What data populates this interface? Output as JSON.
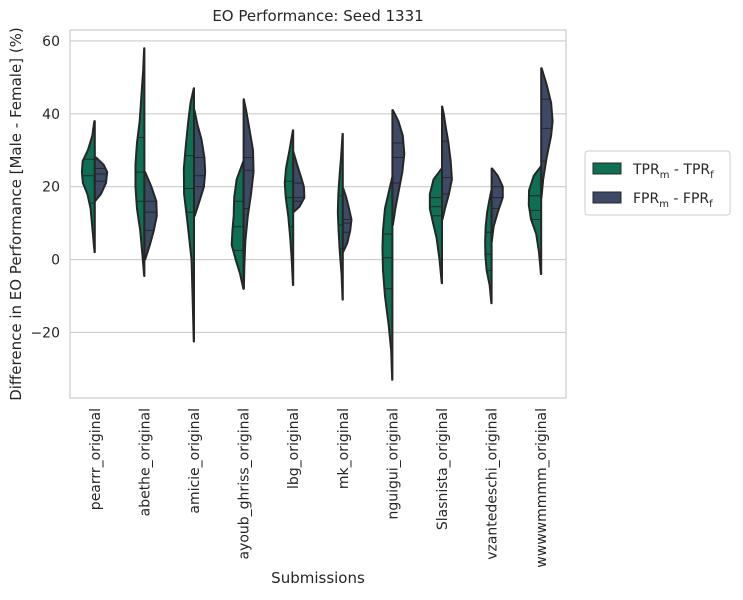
{
  "chart_data": {
    "type": "violin",
    "title": "EO Performance: Seed 1331",
    "xlabel": "Submissions",
    "ylabel": "Difference in EO Performance [Male - Female] (%)",
    "ylim": [
      -38,
      63
    ],
    "yticks": [
      -20,
      0,
      20,
      40,
      60
    ],
    "grid": "y",
    "legend_position": "right",
    "categories": [
      "pearrr_original",
      "abethe_original",
      "amicie_original",
      "ayoub_ghriss_original",
      "lbg_original",
      "mk_original",
      "nguigui_original",
      "Slasnista_original",
      "vzantedeschi_original",
      "wwwwmmmm_original"
    ],
    "series": [
      {
        "name": "TPR_m - TPR_f",
        "legend_main": "TPR",
        "legend_sub1": "m",
        "legend_mid": " - TPR",
        "legend_sub2": "f",
        "color": "#0d7054",
        "violins": [
          {
            "min": 2,
            "max": 38,
            "quartiles": [
              15.5,
              23,
              27.5
            ],
            "shape": [
              [
                2,
                0.01
              ],
              [
                8,
                0.09
              ],
              [
                14,
                0.17
              ],
              [
                18,
                0.3
              ],
              [
                21,
                0.48
              ],
              [
                24,
                0.52
              ],
              [
                27,
                0.49
              ],
              [
                30,
                0.28
              ],
              [
                34,
                0.1
              ],
              [
                38,
                0.02
              ]
            ]
          },
          {
            "min": -4.5,
            "max": 58,
            "quartiles": [
              16,
              24,
              33.5
            ],
            "shape": [
              [
                -4.5,
                0.01
              ],
              [
                2,
                0.09
              ],
              [
                8,
                0.17
              ],
              [
                14,
                0.3
              ],
              [
                20,
                0.36
              ],
              [
                26,
                0.36
              ],
              [
                32,
                0.3
              ],
              [
                38,
                0.19
              ],
              [
                45,
                0.12
              ],
              [
                52,
                0.05
              ],
              [
                58,
                0.01
              ]
            ]
          },
          {
            "min": -22.5,
            "max": 47,
            "quartiles": [
              13,
              19.5,
              28.5
            ],
            "shape": [
              [
                -22.5,
                0.01
              ],
              [
                -12,
                0.05
              ],
              [
                0,
                0.1
              ],
              [
                10,
                0.26
              ],
              [
                18,
                0.4
              ],
              [
                25,
                0.41
              ],
              [
                32,
                0.32
              ],
              [
                38,
                0.23
              ],
              [
                43,
                0.14
              ],
              [
                47,
                0.01
              ]
            ]
          },
          {
            "min": -8,
            "max": 27,
            "quartiles": [
              2.5,
              9,
              16
            ],
            "shape": [
              [
                -8,
                0.01
              ],
              [
                -4,
                0.14
              ],
              [
                0,
                0.32
              ],
              [
                4,
                0.48
              ],
              [
                8,
                0.45
              ],
              [
                12,
                0.4
              ],
              [
                17,
                0.38
              ],
              [
                22,
                0.28
              ],
              [
                27,
                0.01
              ]
            ]
          },
          {
            "min": -7,
            "max": 35.5,
            "quartiles": [
              9,
              17,
              21.5
            ],
            "shape": [
              [
                -7,
                0.01
              ],
              [
                0,
                0.06
              ],
              [
                6,
                0.12
              ],
              [
                12,
                0.2
              ],
              [
                17,
                0.3
              ],
              [
                21,
                0.34
              ],
              [
                25,
                0.29
              ],
              [
                30,
                0.15
              ],
              [
                35.5,
                0.01
              ]
            ]
          },
          {
            "min": -11,
            "max": 34.5,
            "quartiles": [
              3,
              9.5,
              17.5
            ],
            "shape": [
              [
                -11,
                0.01
              ],
              [
                -4,
                0.05
              ],
              [
                2,
                0.12
              ],
              [
                8,
                0.17
              ],
              [
                13,
                0.2
              ],
              [
                18,
                0.18
              ],
              [
                23,
                0.13
              ],
              [
                28,
                0.07
              ],
              [
                34.5,
                0.01
              ]
            ]
          },
          {
            "min": -33,
            "max": 22.5,
            "quartiles": [
              -8,
              0.5,
              7
            ],
            "shape": [
              [
                -33,
                0.01
              ],
              [
                -25,
                0.05
              ],
              [
                -18,
                0.15
              ],
              [
                -10,
                0.3
              ],
              [
                -3,
                0.38
              ],
              [
                3,
                0.4
              ],
              [
                8,
                0.38
              ],
              [
                14,
                0.3
              ],
              [
                19,
                0.13
              ],
              [
                22.5,
                0.01
              ]
            ]
          },
          {
            "min": -6.5,
            "max": 25,
            "quartiles": [
              12,
              14.5,
              17
            ],
            "shape": [
              [
                -6.5,
                0.01
              ],
              [
                0,
                0.1
              ],
              [
                6,
                0.22
              ],
              [
                10,
                0.36
              ],
              [
                14,
                0.49
              ],
              [
                18,
                0.49
              ],
              [
                22,
                0.34
              ],
              [
                25,
                0.01
              ]
            ]
          },
          {
            "min": -12,
            "max": 19,
            "quartiles": [
              -3,
              1.5,
              7.5
            ],
            "shape": [
              [
                -12,
                0.01
              ],
              [
                -7,
                0.08
              ],
              [
                -3,
                0.2
              ],
              [
                1,
                0.25
              ],
              [
                5,
                0.26
              ],
              [
                9,
                0.24
              ],
              [
                13,
                0.18
              ],
              [
                17,
                0.07
              ],
              [
                19,
                0.01
              ]
            ]
          },
          {
            "min": -4,
            "max": 25.5,
            "quartiles": [
              11,
              13.5,
              17.5
            ],
            "shape": [
              [
                -4,
                0.01
              ],
              [
                2,
                0.09
              ],
              [
                7,
                0.2
              ],
              [
                11,
                0.41
              ],
              [
                15,
                0.5
              ],
              [
                19,
                0.49
              ],
              [
                23,
                0.3
              ],
              [
                25.5,
                0.02
              ]
            ]
          }
        ]
      },
      {
        "name": "FPR_m - FPR_f",
        "legend_main": "FPR",
        "legend_sub1": "m",
        "legend_mid": " - FPR",
        "legend_sub2": "f",
        "color": "#3d4a66",
        "violins": [
          {
            "min": 16,
            "max": 28,
            "quartiles": [
              21.5,
              23.5,
              25
            ],
            "shape": [
              [
                16,
                0.01
              ],
              [
                18,
                0.25
              ],
              [
                21,
                0.45
              ],
              [
                24,
                0.5
              ],
              [
                26,
                0.36
              ],
              [
                28,
                0.05
              ]
            ]
          },
          {
            "min": 0,
            "max": 24,
            "quartiles": [
              8,
              13,
              16
            ],
            "shape": [
              [
                0,
                0.03
              ],
              [
                4,
                0.22
              ],
              [
                8,
                0.38
              ],
              [
                12,
                0.5
              ],
              [
                16,
                0.48
              ],
              [
                20,
                0.28
              ],
              [
                24,
                0.03
              ]
            ]
          },
          {
            "min": 12,
            "max": 41,
            "quartiles": [
              20,
              23,
              28
            ],
            "shape": [
              [
                12,
                0.03
              ],
              [
                16,
                0.22
              ],
              [
                20,
                0.4
              ],
              [
                24,
                0.45
              ],
              [
                28,
                0.42
              ],
              [
                33,
                0.3
              ],
              [
                37,
                0.14
              ],
              [
                41,
                0.02
              ]
            ]
          },
          {
            "min": -8,
            "max": 44,
            "quartiles": [
              14,
              24.5,
              28
            ],
            "shape": [
              [
                -8,
                0.01
              ],
              [
                -2,
                0.03
              ],
              [
                5,
                0.07
              ],
              [
                12,
                0.17
              ],
              [
                18,
                0.3
              ],
              [
                24,
                0.4
              ],
              [
                30,
                0.38
              ],
              [
                36,
                0.23
              ],
              [
                41,
                0.1
              ],
              [
                44,
                0.01
              ]
            ]
          },
          {
            "min": 13,
            "max": 29.5,
            "quartiles": [
              16,
              17,
              21
            ],
            "shape": [
              [
                13,
                0.01
              ],
              [
                14.5,
                0.25
              ],
              [
                17,
                0.45
              ],
              [
                20,
                0.43
              ],
              [
                23,
                0.3
              ],
              [
                26,
                0.16
              ],
              [
                29.5,
                0.01
              ]
            ]
          },
          {
            "min": 2,
            "max": 19.5,
            "quartiles": [
              7.5,
              10,
              11
            ],
            "shape": [
              [
                2,
                0.01
              ],
              [
                4.5,
                0.18
              ],
              [
                8,
                0.3
              ],
              [
                11,
                0.35
              ],
              [
                14,
                0.25
              ],
              [
                17,
                0.14
              ],
              [
                19.5,
                0.02
              ]
            ]
          },
          {
            "min": 9.5,
            "max": 41,
            "quartiles": [
              21,
              28,
              32
            ],
            "shape": [
              [
                9.5,
                0.02
              ],
              [
                14,
                0.12
              ],
              [
                19,
                0.26
              ],
              [
                24,
                0.4
              ],
              [
                29,
                0.48
              ],
              [
                34,
                0.42
              ],
              [
                38,
                0.24
              ],
              [
                41,
                0.02
              ]
            ]
          },
          {
            "min": 11,
            "max": 42,
            "quartiles": [
              18,
              22.5,
              32.5
            ],
            "shape": [
              [
                11,
                0.02
              ],
              [
                14,
                0.12
              ],
              [
                18,
                0.28
              ],
              [
                22,
                0.4
              ],
              [
                27,
                0.35
              ],
              [
                32,
                0.26
              ],
              [
                36,
                0.16
              ],
              [
                40,
                0.07
              ],
              [
                42,
                0.01
              ]
            ]
          },
          {
            "min": 5,
            "max": 25,
            "quartiles": [
              14,
              17,
              20
            ],
            "shape": [
              [
                5,
                0.01
              ],
              [
                9,
                0.08
              ],
              [
                13,
                0.25
              ],
              [
                17,
                0.45
              ],
              [
                20,
                0.45
              ],
              [
                23,
                0.25
              ],
              [
                25,
                0.02
              ]
            ]
          },
          {
            "min": 17,
            "max": 52.5,
            "quartiles": [
              27,
              36,
              44
            ],
            "shape": [
              [
                17,
                0.01
              ],
              [
                22,
                0.08
              ],
              [
                28,
                0.22
              ],
              [
                34,
                0.4
              ],
              [
                38,
                0.46
              ],
              [
                43,
                0.4
              ],
              [
                48,
                0.22
              ],
              [
                52.5,
                0.02
              ]
            ]
          }
        ]
      }
    ]
  }
}
